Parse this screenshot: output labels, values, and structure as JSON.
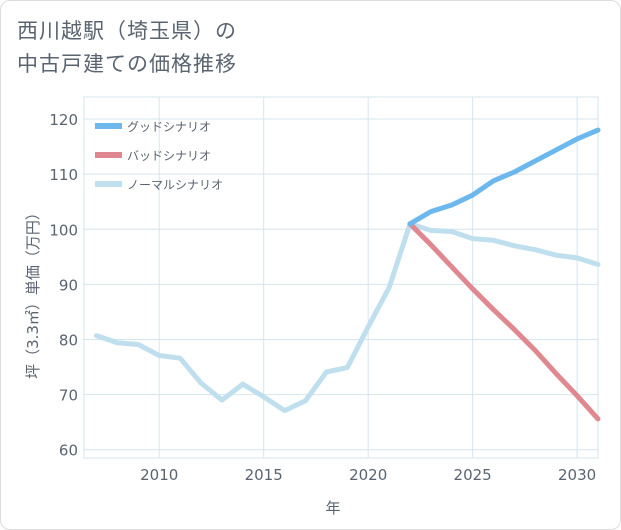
{
  "title": {
    "line1": "西川越駅（埼玉県）の",
    "line2": "中古戸建ての価格推移"
  },
  "chart_data": {
    "type": "line",
    "title": "西川越駅（埼玉県）の中古戸建ての価格推移",
    "xlabel": "年",
    "ylabel": "坪（3.3㎡）単価（万円）",
    "xlim": [
      2006.4,
      2031
    ],
    "ylim": [
      58.5,
      124
    ],
    "xticks": [
      2010,
      2015,
      2020,
      2025,
      2030
    ],
    "yticks": [
      60,
      70,
      80,
      90,
      100,
      110,
      120
    ],
    "grid": true,
    "legend_position": "top-left",
    "series": [
      {
        "name": "グッドシナリオ",
        "color": "#6cb8ec",
        "x": [
          2022,
          2023,
          2024,
          2025,
          2026,
          2027,
          2028,
          2029,
          2030,
          2031
        ],
        "values": [
          101,
          103.2,
          104.4,
          106.2,
          108.8,
          110.4,
          112.4,
          114.4,
          116.4,
          118
        ]
      },
      {
        "name": "バッドシナリオ",
        "color": "#e08890",
        "x": [
          2022,
          2023,
          2024,
          2025,
          2026,
          2027,
          2028,
          2029,
          2030,
          2031
        ],
        "values": [
          101,
          97.2,
          93.2,
          89.2,
          85.4,
          81.8,
          78,
          73.8,
          69.8,
          65.6
        ]
      },
      {
        "name": "ノーマルシナリオ",
        "color": "#bfdfee",
        "x": [
          2007,
          2008,
          2009,
          2010,
          2011,
          2012,
          2013,
          2014,
          2015,
          2016,
          2017,
          2018,
          2019,
          2020,
          2021,
          2022,
          2023,
          2024,
          2025,
          2026,
          2027,
          2028,
          2029,
          2030,
          2031
        ],
        "values": [
          80.7,
          79.4,
          79.1,
          77.1,
          76.6,
          72.1,
          69,
          71.9,
          69.6,
          67.1,
          68.9,
          74.1,
          74.9,
          82.3,
          89.4,
          101,
          99.8,
          99.6,
          98.3,
          98,
          97,
          96.3,
          95.3,
          94.8,
          93.6
        ]
      }
    ]
  }
}
